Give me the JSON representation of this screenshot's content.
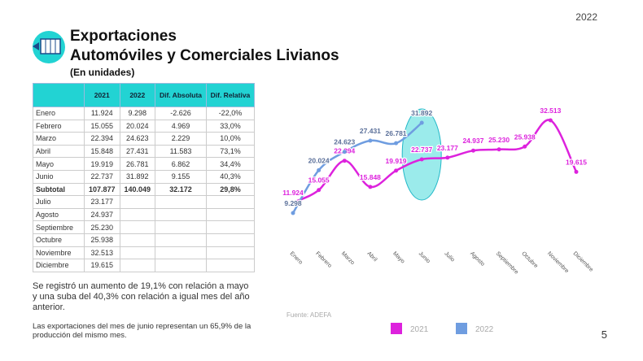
{
  "year": "2022",
  "header": {
    "title": "Exportaciones",
    "subtitle": "Automóviles y Comerciales Livianos",
    "units": "(En unidades)"
  },
  "table": {
    "columns": [
      "2021",
      "2022",
      "Dif. Absoluta",
      "Dif. Relativa"
    ],
    "rows": [
      [
        "Enero",
        "11.924",
        "9.298",
        "-2.626",
        "-22,0%"
      ],
      [
        "Febrero",
        "15.055",
        "20.024",
        "4.969",
        "33,0%"
      ],
      [
        "Marzo",
        "22.394",
        "24.623",
        "2.229",
        "10,0%"
      ],
      [
        "Abril",
        "15.848",
        "27.431",
        "11.583",
        "73,1%"
      ],
      [
        "Mayo",
        "19.919",
        "26.781",
        "6.862",
        "34,4%"
      ],
      [
        "Junio",
        "22.737",
        "31.892",
        "9.155",
        "40,3%"
      ],
      [
        "Subtotal",
        "107.877",
        "140.049",
        "32.172",
        "29,8%"
      ],
      [
        "Julio",
        "23.177"
      ],
      [
        "Agosto",
        "24.937"
      ],
      [
        "Septiembre",
        "25.230"
      ],
      [
        "Octubre",
        "25.938"
      ],
      [
        "Noviembre",
        "32.513"
      ],
      [
        "Diciembre",
        "19.615"
      ]
    ]
  },
  "notes": [
    "Se registró un aumento de 19,1% con relación a mayo y una suba del 40,3% con relación a igual mes del año anterior.",
    "Las exportaciones del mes de junio representan un 65,9% de la producción del mismo mes."
  ],
  "source": "Fuente: ADEFA",
  "page_number": "5",
  "chart_data": {
    "type": "line",
    "categories": [
      "Enero",
      "Febrero",
      "Marzo",
      "Abril",
      "Mayo",
      "Junio",
      "Julio",
      "Agosto",
      "Septiembre",
      "Octubre",
      "Noviembre",
      "Diciembre"
    ],
    "series": [
      {
        "name": "2021",
        "color": "#dd22dd",
        "values": [
          11924,
          15055,
          22394,
          15848,
          19919,
          22737,
          23177,
          24937,
          25230,
          25938,
          32513,
          19615
        ],
        "value_labels": [
          "11.924",
          "15.055",
          "22.394",
          "15.848",
          "19.919",
          "22.737",
          "23.177",
          "24.937",
          "25.230",
          "25.938",
          "32.513",
          "19.615"
        ]
      },
      {
        "name": "2022",
        "color": "#6f9de0",
        "values": [
          9298,
          20024,
          24623,
          27431,
          26781,
          31892,
          null,
          null,
          null,
          null,
          null,
          null
        ],
        "value_labels": [
          "9.298",
          "20.024",
          "24.623",
          "27.431",
          "26.781",
          "31.892",
          null,
          null,
          null,
          null,
          null,
          null
        ]
      }
    ]
  }
}
